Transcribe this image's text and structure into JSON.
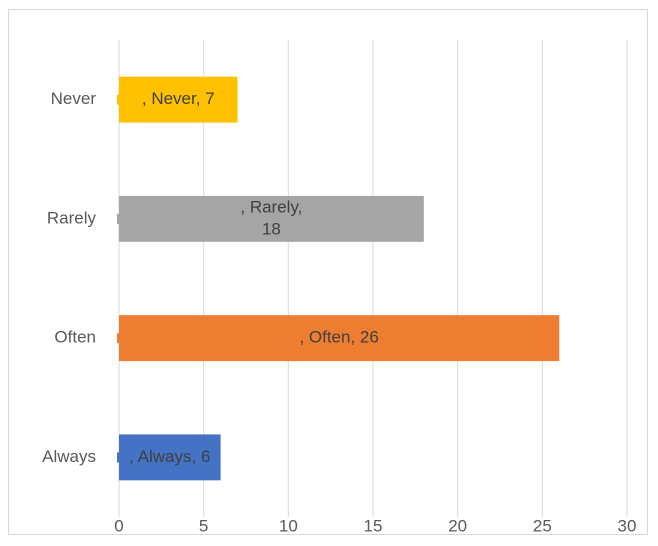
{
  "chart_data": {
    "type": "bar",
    "orientation": "horizontal",
    "categories": [
      "Always",
      "Often",
      "Rarely",
      "Never"
    ],
    "values": [
      6,
      26,
      18,
      7
    ],
    "colors": [
      "#4472C4",
      "#ED7D31",
      "#A5A5A5",
      "#FFC000"
    ],
    "data_labels": [
      [
        ", Always, 6"
      ],
      [
        ", Often, 26"
      ],
      [
        ", Rarely,",
        "18"
      ],
      [
        ", Never, 7"
      ]
    ],
    "xlim": [
      0,
      30
    ],
    "xticks": [
      0,
      5,
      10,
      15,
      20,
      25,
      30
    ],
    "grid": "vertical",
    "legend": "none"
  }
}
